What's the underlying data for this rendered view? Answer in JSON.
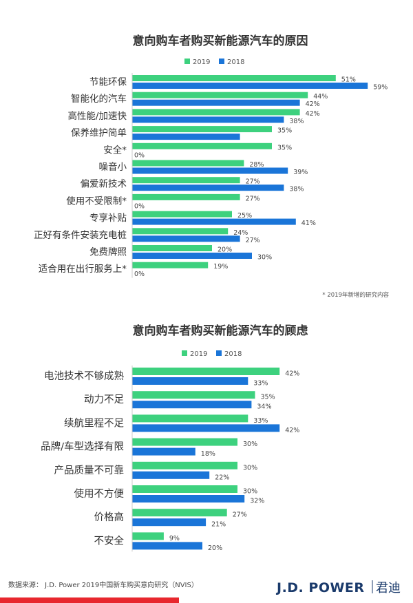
{
  "chart_data": [
    {
      "type": "bar",
      "title": "意向购车者购买新能源汽车的原因",
      "categories": [
        "节能环保",
        "智能化的汽车",
        "高性能/加速快",
        "保养维护简单",
        "安全*",
        "噪音小",
        "偏爱新技术",
        "使用不受限制*",
        "专享补贴",
        "正好有条件安装充电桩",
        "免费牌照",
        "适合用在出行服务上*"
      ],
      "series": [
        {
          "name": "2019",
          "color": "#3dd17e",
          "values": [
            51,
            44,
            42,
            35,
            35,
            28,
            27,
            27,
            25,
            24,
            20,
            19
          ]
        },
        {
          "name": "2018",
          "color": "#1a75d8",
          "values": [
            59,
            42,
            38,
            27,
            0,
            39,
            38,
            0,
            41,
            27,
            30,
            0
          ]
        }
      ],
      "show_value_for": [
        [
          true,
          true,
          true,
          true,
          true,
          true,
          true,
          true,
          true,
          true,
          true,
          true
        ],
        [
          true,
          true,
          true,
          false,
          true,
          true,
          true,
          true,
          true,
          true,
          true,
          true
        ]
      ],
      "value_suffix": "%",
      "legend": "top-center",
      "note": "* 2019年新增的研究内容"
    },
    {
      "type": "bar",
      "title": "意向购车者购买新能源汽车的顾虑",
      "categories": [
        "电池技术不够成熟",
        "动力不足",
        "续航里程不足",
        "品牌/车型选择有限",
        "产品质量不可靠",
        "使用不方便",
        "价格高",
        "不安全"
      ],
      "series": [
        {
          "name": "2019",
          "color": "#3dd17e",
          "values": [
            42,
            35,
            33,
            30,
            30,
            30,
            27,
            9
          ]
        },
        {
          "name": "2018",
          "color": "#1a75d8",
          "values": [
            33,
            34,
            42,
            18,
            22,
            32,
            21,
            20
          ]
        }
      ],
      "value_suffix": "%",
      "legend": "top-center"
    }
  ],
  "footer": {
    "source": "数据来源： J.D. Power 2019中国新车购买意向研究（NVIS）",
    "brand": "J.D. POWER",
    "brand_cn": "君迪"
  },
  "colors": {
    "green": "#3dd17e",
    "blue": "#1a75d8",
    "footer_bar": "#e8272e"
  }
}
